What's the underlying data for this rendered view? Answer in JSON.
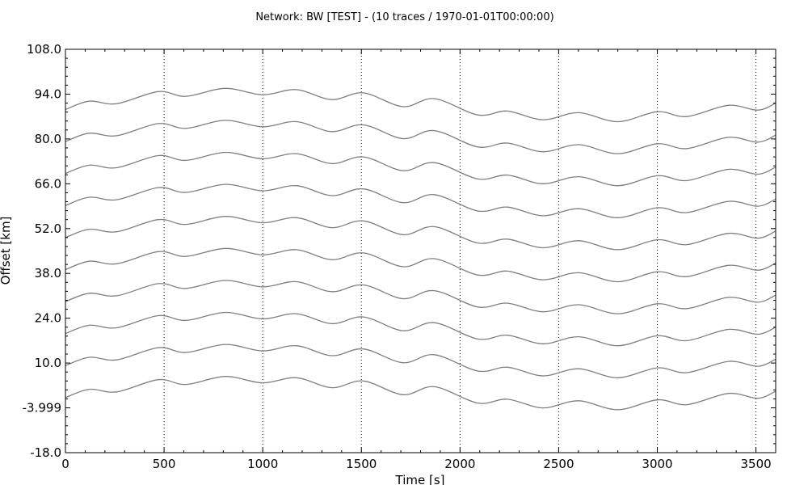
{
  "chart_data": {
    "type": "line",
    "title": "Network: BW [TEST] - (10 traces / 1970-01-01T00:00:00)",
    "xlabel": "Time [s]",
    "ylabel": "Offset [km]",
    "xlim": [
      0,
      3600
    ],
    "ylim": [
      -18.0,
      108.0
    ],
    "x_ticks": [
      0,
      500,
      1000,
      1500,
      2000,
      2500,
      3000,
      3500
    ],
    "x_tick_labels": [
      "0",
      "500",
      "1000",
      "1500",
      "2000",
      "2500",
      "3000",
      "3500"
    ],
    "y_ticks": [
      -18.0,
      -3.999,
      10.0,
      24.0,
      38.0,
      52.0,
      66.0,
      80.0,
      94.0,
      108.0
    ],
    "y_tick_labels": [
      "-18.0",
      "-3.999",
      "10.0",
      "24.0",
      "38.0",
      "52.0",
      "66.0",
      "80.0",
      "94.0",
      "108.0"
    ],
    "grid": "x-dotted",
    "line_color": "#7f7f7f",
    "trace_x": [
      0,
      120,
      260,
      470,
      610,
      810,
      1000,
      1170,
      1350,
      1510,
      1710,
      1870,
      2090,
      2240,
      2420,
      2600,
      2800,
      3000,
      3150,
      3360,
      3510,
      3600
    ],
    "trace_offsets": [
      0,
      10,
      20,
      30,
      40,
      50,
      60,
      70,
      80,
      90
    ],
    "trace_baseline_values": [
      -0.8,
      1.8,
      1.0,
      4.8,
      3.3,
      5.8,
      3.8,
      5.4,
      2.3,
      4.4,
      0.1,
      2.6,
      -2.5,
      -1.3,
      -4.0,
      -1.8,
      -4.6,
      -1.5,
      -3.0,
      0.5,
      -1.0,
      1.2
    ]
  }
}
